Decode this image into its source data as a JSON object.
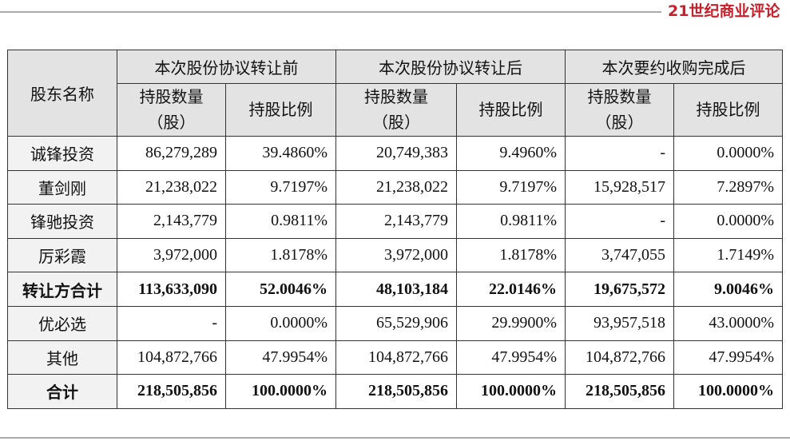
{
  "header": {
    "brand": "21世纪商业评论"
  },
  "table": {
    "corner": "股东名称",
    "groups": [
      "本次股份协议转让前",
      "本次股份协议转让后",
      "本次要约收购完成后"
    ],
    "sub_headers": [
      [
        "持股数量",
        "（股）"
      ],
      [
        "持股比例"
      ],
      [
        "持股数量",
        "（股）"
      ],
      [
        "持股比例"
      ],
      [
        "持股数量",
        "（股）"
      ],
      [
        "持股比例"
      ]
    ],
    "rows": [
      {
        "cells": [
          "诚锋投资",
          "86,279,289",
          "39.4860%",
          "20,749,383",
          "9.4960%",
          "-",
          "0.0000%"
        ]
      },
      {
        "cells": [
          "董剑刚",
          "21,238,022",
          "9.7197%",
          "21,238,022",
          "9.7197%",
          "15,928,517",
          "7.2897%"
        ]
      },
      {
        "cells": [
          "锋驰投资",
          "2,143,779",
          "0.9811%",
          "2,143,779",
          "0.9811%",
          "-",
          "0.0000%"
        ]
      },
      {
        "cells": [
          "厉彩霞",
          "3,972,000",
          "1.8178%",
          "3,972,000",
          "1.8178%",
          "3,747,055",
          "1.7149%"
        ]
      },
      {
        "cells": [
          "转让方合计",
          "113,633,090",
          "52.0046%",
          "48,103,184",
          "22.0146%",
          "19,675,572",
          "9.0046%"
        ],
        "bold": true
      },
      {
        "cells": [
          "优必选",
          "-",
          "0.0000%",
          "65,529,906",
          "29.9900%",
          "93,957,518",
          "43.0000%"
        ]
      },
      {
        "cells": [
          "其他",
          "104,872,766",
          "47.9954%",
          "104,872,766",
          "47.9954%",
          "104,872,766",
          "47.9954%"
        ]
      },
      {
        "cells": [
          "合计",
          "218,505,856",
          "100.0000%",
          "218,505,856",
          "100.0000%",
          "218,505,856",
          "100.0000%"
        ],
        "bold": true
      }
    ]
  }
}
